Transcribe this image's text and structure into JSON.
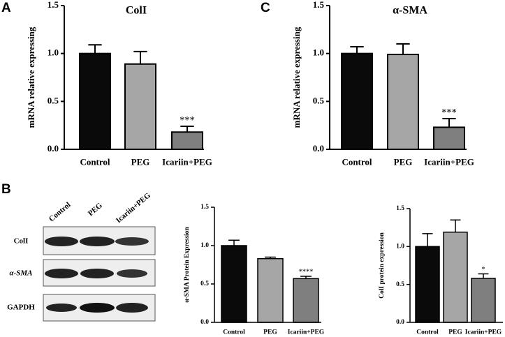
{
  "panel_labels": [
    "A",
    "B",
    "C"
  ],
  "blot": {
    "lanes": [
      "Control",
      "PEG",
      "Icariin+PEG"
    ],
    "rows": [
      "ColI",
      "α-SMA",
      "GAPDH"
    ]
  },
  "chart_data": [
    {
      "type": "bar",
      "title": "ColI",
      "y_label": "mRNA relative expressing",
      "categories": [
        "Control",
        "PEG",
        "Icariin+PEG"
      ],
      "values": [
        1.0,
        0.89,
        0.18
      ],
      "errors": [
        0.09,
        0.13,
        0.06
      ],
      "colors": [
        "#0a0a0a",
        "#a6a6a6",
        "#7f7f7f"
      ],
      "significance": [
        null,
        null,
        "***"
      ],
      "ylim": [
        0,
        1.5
      ],
      "yticks": [
        {
          "value": 0,
          "label": "0.0"
        },
        0.5,
        {
          "value": 1,
          "label": "1.0"
        },
        1.5
      ]
    },
    {
      "type": "bar",
      "title": "α-SMA",
      "y_label": "mRNA relative expressing",
      "categories": [
        "Control",
        "PEG",
        "Icariin+PEG"
      ],
      "values": [
        1.0,
        0.99,
        0.23
      ],
      "errors": [
        0.07,
        0.11,
        0.09
      ],
      "colors": [
        "#0a0a0a",
        "#a6a6a6",
        "#7f7f7f"
      ],
      "significance": [
        null,
        null,
        "***"
      ],
      "ylim": [
        0,
        1.5
      ],
      "yticks": [
        {
          "value": 0,
          "label": "0.0"
        },
        0.5,
        {
          "value": 1,
          "label": "1.0"
        },
        1.5
      ]
    },
    {
      "type": "bar",
      "y_label": "α-SMA Protein Expression",
      "categories": [
        "Control",
        "PEG",
        "Icariin+PEG"
      ],
      "values": [
        1.0,
        0.83,
        0.57
      ],
      "errors": [
        0.07,
        0.02,
        0.03
      ],
      "colors": [
        "#0a0a0a",
        "#a6a6a6",
        "#7f7f7f"
      ],
      "significance": [
        null,
        null,
        "****"
      ],
      "ylim": [
        0,
        1.5
      ],
      "yticks": [
        {
          "value": 0,
          "label": "0.0"
        },
        0.5,
        {
          "value": 1,
          "label": "1.0"
        },
        1.5
      ]
    },
    {
      "type": "bar",
      "y_label": "ColI protein expression",
      "categories": [
        "Control",
        "PEG",
        "Icariin+PEG"
      ],
      "values": [
        1.0,
        1.19,
        0.58
      ],
      "errors": [
        0.17,
        0.16,
        0.06
      ],
      "colors": [
        "#0a0a0a",
        "#a6a6a6",
        "#7f7f7f"
      ],
      "significance": [
        null,
        null,
        "*"
      ],
      "ylim": [
        0,
        1.5
      ],
      "yticks": [
        {
          "value": 0,
          "label": "0.0"
        },
        0.5,
        {
          "value": 1,
          "label": "1.0"
        },
        1.5
      ]
    }
  ]
}
